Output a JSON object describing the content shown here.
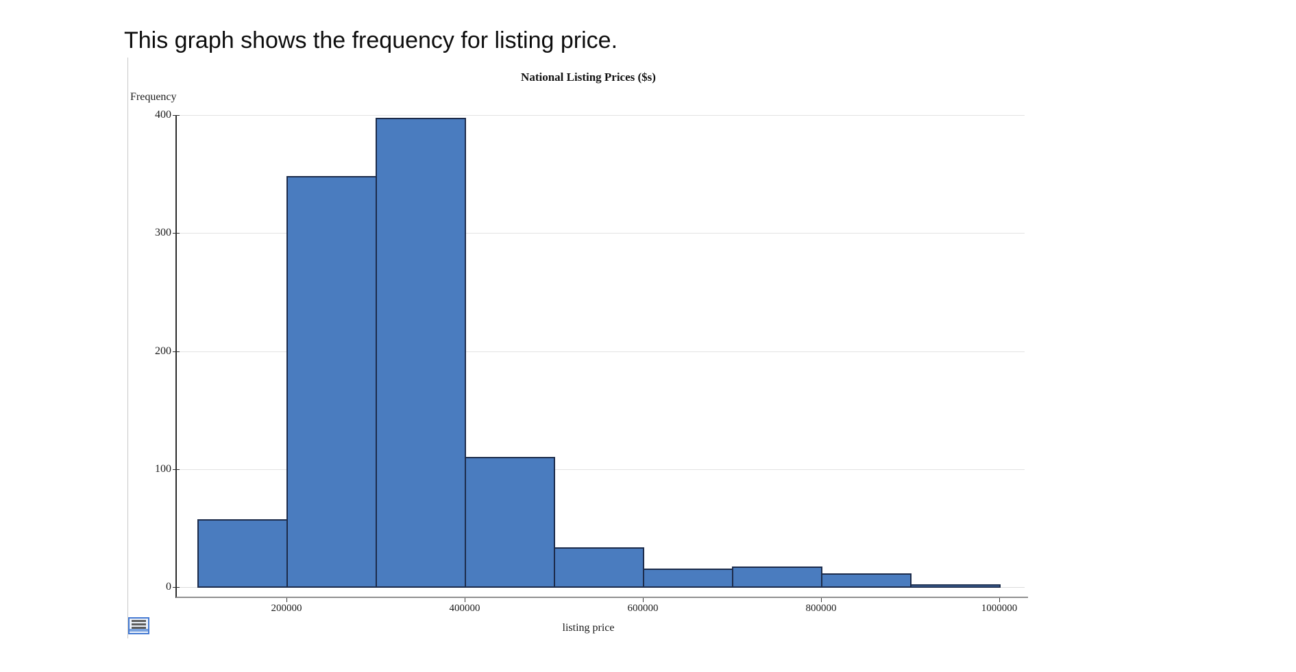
{
  "heading": "This graph shows the frequency for listing price.",
  "chart_data": {
    "type": "bar",
    "subtype": "histogram",
    "title": "National Listing Prices ($s)",
    "xlabel": "listing price",
    "ylabel": "Frequency",
    "ylim": [
      0,
      400
    ],
    "xlim": [
      80000,
      1030000
    ],
    "grid": "horizontal",
    "legend": "none",
    "y_ticks": [
      0,
      100,
      200,
      300,
      400
    ],
    "x_ticks": [
      200000,
      400000,
      600000,
      800000,
      1000000
    ],
    "bin_width": 100000,
    "bins": [
      {
        "range": [
          100000,
          200000
        ],
        "count": 57
      },
      {
        "range": [
          200000,
          300000
        ],
        "count": 348
      },
      {
        "range": [
          300000,
          400000
        ],
        "count": 397
      },
      {
        "range": [
          400000,
          500000
        ],
        "count": 110
      },
      {
        "range": [
          500000,
          600000
        ],
        "count": 33
      },
      {
        "range": [
          600000,
          700000
        ],
        "count": 15
      },
      {
        "range": [
          700000,
          800000
        ],
        "count": 17
      },
      {
        "range": [
          800000,
          900000
        ],
        "count": 11
      },
      {
        "range": [
          900000,
          1000000
        ],
        "count": 2
      }
    ]
  },
  "colors": {
    "bar_fill": "#4a7cbf",
    "bar_border": "#1c2b4a",
    "gridline": "#e3e3e3",
    "axis": "#2b2b2b",
    "baseline": "#8f8f8f",
    "icon_blue": "#4479d2"
  },
  "icons": {
    "bottom_left": "report-icon"
  }
}
